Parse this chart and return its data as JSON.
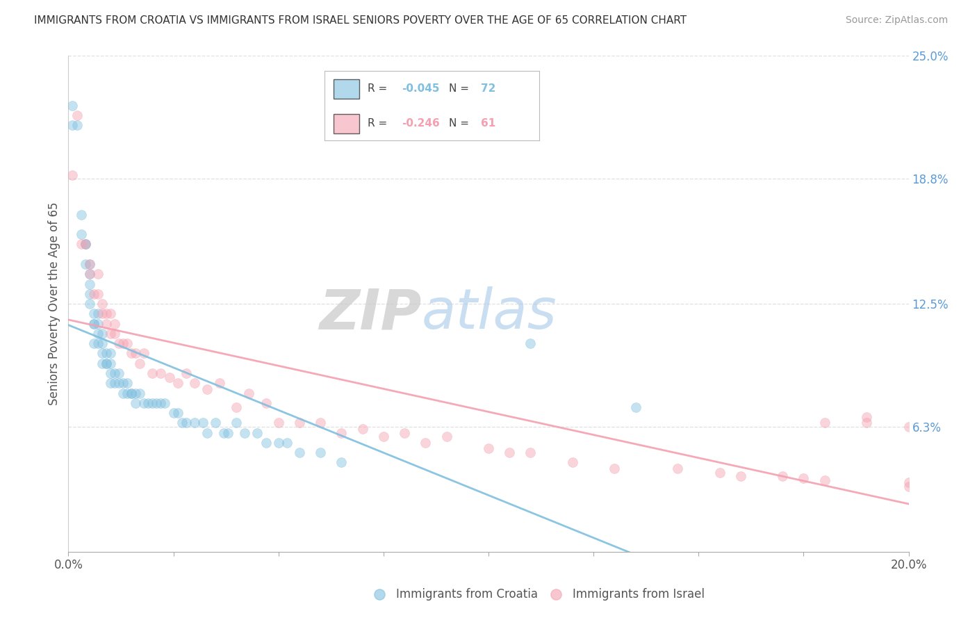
{
  "title": "IMMIGRANTS FROM CROATIA VS IMMIGRANTS FROM ISRAEL SENIORS POVERTY OVER THE AGE OF 65 CORRELATION CHART",
  "source": "Source: ZipAtlas.com",
  "ylabel": "Seniors Poverty Over the Age of 65",
  "xlim": [
    0.0,
    0.2
  ],
  "ylim": [
    0.0,
    0.25
  ],
  "xtick_positions": [
    0.0,
    0.025,
    0.05,
    0.075,
    0.1,
    0.125,
    0.15,
    0.175,
    0.2
  ],
  "xtick_labels_show": {
    "0.0": "0.0%",
    "0.20": "20.0%"
  },
  "ytick_labels": [
    "6.3%",
    "12.5%",
    "18.8%",
    "25.0%"
  ],
  "ytick_vals": [
    0.063,
    0.125,
    0.188,
    0.25
  ],
  "croatia_color": "#7fbfdf",
  "israel_color": "#f4a0b0",
  "croatia_R": -0.045,
  "croatia_N": 72,
  "israel_R": -0.246,
  "israel_N": 61,
  "legend_label_croatia": "Immigrants from Croatia",
  "legend_label_israel": "Immigrants from Israel",
  "watermark_zip": "ZIP",
  "watermark_atlas": "atlas",
  "croatia_scatter_x": [
    0.001,
    0.001,
    0.002,
    0.003,
    0.003,
    0.004,
    0.004,
    0.004,
    0.005,
    0.005,
    0.005,
    0.005,
    0.005,
    0.006,
    0.006,
    0.006,
    0.006,
    0.007,
    0.007,
    0.007,
    0.007,
    0.008,
    0.008,
    0.008,
    0.008,
    0.009,
    0.009,
    0.009,
    0.01,
    0.01,
    0.01,
    0.01,
    0.011,
    0.011,
    0.012,
    0.012,
    0.013,
    0.013,
    0.014,
    0.014,
    0.015,
    0.015,
    0.016,
    0.016,
    0.017,
    0.018,
    0.019,
    0.02,
    0.021,
    0.022,
    0.023,
    0.025,
    0.026,
    0.027,
    0.028,
    0.03,
    0.032,
    0.033,
    0.035,
    0.037,
    0.038,
    0.04,
    0.042,
    0.045,
    0.047,
    0.05,
    0.052,
    0.055,
    0.06,
    0.065,
    0.11,
    0.135
  ],
  "croatia_scatter_y": [
    0.215,
    0.225,
    0.215,
    0.16,
    0.17,
    0.155,
    0.155,
    0.145,
    0.14,
    0.145,
    0.13,
    0.125,
    0.135,
    0.115,
    0.115,
    0.12,
    0.105,
    0.105,
    0.11,
    0.115,
    0.12,
    0.095,
    0.1,
    0.105,
    0.11,
    0.095,
    0.1,
    0.095,
    0.09,
    0.095,
    0.1,
    0.085,
    0.085,
    0.09,
    0.085,
    0.09,
    0.085,
    0.08,
    0.08,
    0.085,
    0.08,
    0.08,
    0.08,
    0.075,
    0.08,
    0.075,
    0.075,
    0.075,
    0.075,
    0.075,
    0.075,
    0.07,
    0.07,
    0.065,
    0.065,
    0.065,
    0.065,
    0.06,
    0.065,
    0.06,
    0.06,
    0.065,
    0.06,
    0.06,
    0.055,
    0.055,
    0.055,
    0.05,
    0.05,
    0.045,
    0.105,
    0.073
  ],
  "israel_scatter_x": [
    0.001,
    0.002,
    0.003,
    0.004,
    0.005,
    0.005,
    0.006,
    0.007,
    0.007,
    0.008,
    0.008,
    0.009,
    0.009,
    0.01,
    0.01,
    0.011,
    0.011,
    0.012,
    0.013,
    0.014,
    0.015,
    0.016,
    0.017,
    0.018,
    0.02,
    0.022,
    0.024,
    0.026,
    0.028,
    0.03,
    0.033,
    0.036,
    0.04,
    0.043,
    0.047,
    0.05,
    0.055,
    0.06,
    0.065,
    0.07,
    0.075,
    0.08,
    0.085,
    0.09,
    0.1,
    0.105,
    0.11,
    0.12,
    0.13,
    0.145,
    0.155,
    0.16,
    0.17,
    0.175,
    0.18,
    0.18,
    0.19,
    0.19,
    0.2,
    0.2,
    0.2
  ],
  "israel_scatter_y": [
    0.19,
    0.22,
    0.155,
    0.155,
    0.14,
    0.145,
    0.13,
    0.13,
    0.14,
    0.12,
    0.125,
    0.12,
    0.115,
    0.11,
    0.12,
    0.11,
    0.115,
    0.105,
    0.105,
    0.105,
    0.1,
    0.1,
    0.095,
    0.1,
    0.09,
    0.09,
    0.088,
    0.085,
    0.09,
    0.085,
    0.082,
    0.085,
    0.073,
    0.08,
    0.075,
    0.065,
    0.065,
    0.065,
    0.06,
    0.062,
    0.058,
    0.06,
    0.055,
    0.058,
    0.052,
    0.05,
    0.05,
    0.045,
    0.042,
    0.042,
    0.04,
    0.038,
    0.038,
    0.037,
    0.036,
    0.065,
    0.068,
    0.065,
    0.063,
    0.035,
    0.033
  ],
  "bg_color": "#ffffff",
  "grid_color": "#e0e0e0",
  "dot_size": 100,
  "dot_alpha": 0.45,
  "trend_lw": 2.0
}
